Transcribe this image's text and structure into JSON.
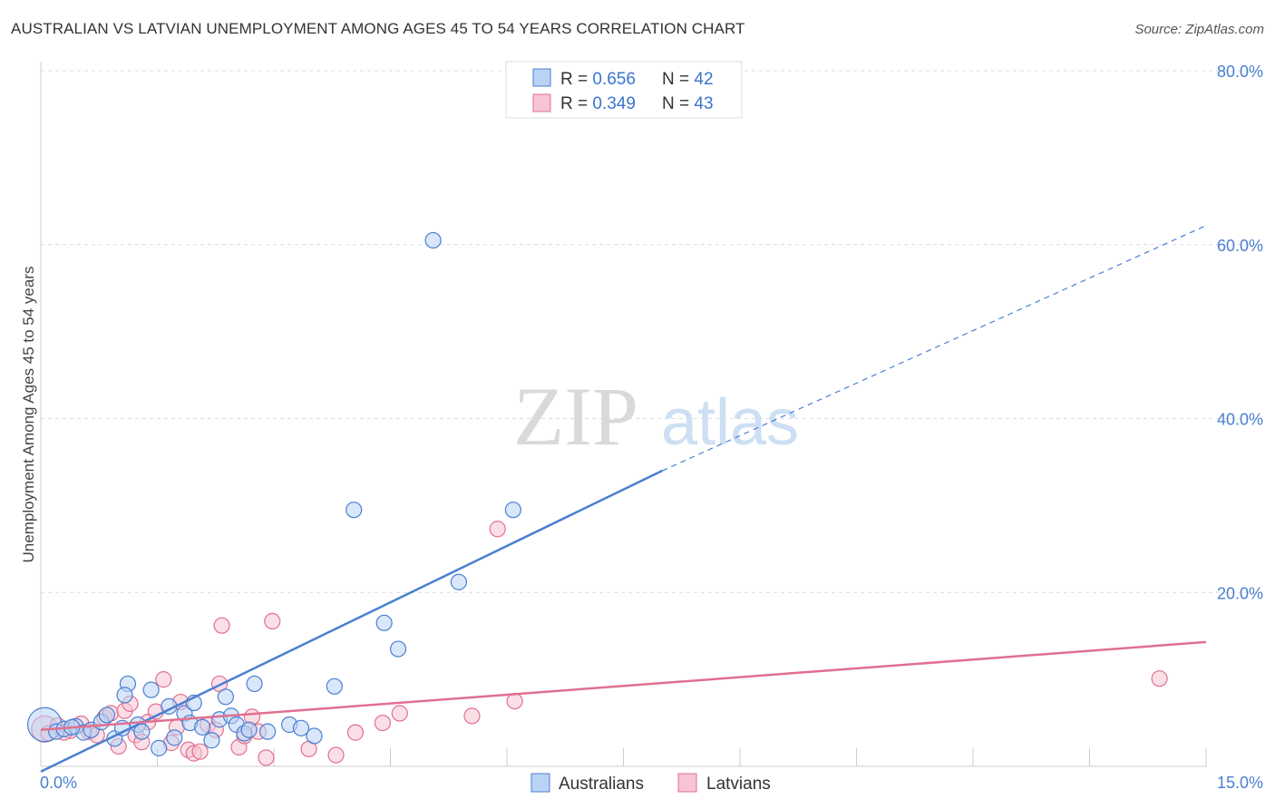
{
  "title": "AUSTRALIAN VS LATVIAN UNEMPLOYMENT AMONG AGES 45 TO 54 YEARS CORRELATION CHART",
  "source": "Source: ZipAtlas.com",
  "watermark": {
    "zip": "ZIP",
    "atlas": "atlas"
  },
  "legend": {
    "rows": [
      {
        "r_label": "R = ",
        "r_value": "0.656",
        "n_label": "N = ",
        "n_value": "42"
      },
      {
        "r_label": "R = ",
        "r_value": "0.349",
        "n_label": "N = ",
        "n_value": "43"
      }
    ]
  },
  "chart_data": {
    "type": "scatter",
    "title": "AUSTRALIAN VS LATVIAN UNEMPLOYMENT AMONG AGES 45 TO 54 YEARS CORRELATION CHART",
    "xlabel": "",
    "ylabel": "Unemployment Among Ages 45 to 54 years",
    "xlim": [
      0,
      15
    ],
    "ylim": [
      0,
      80
    ],
    "x_tick_labels": [
      "0.0%",
      "15.0%"
    ],
    "y_ticks": [
      20,
      40,
      60,
      80
    ],
    "y_tick_labels": [
      "20.0%",
      "40.0%",
      "60.0%",
      "80.0%"
    ],
    "grid": true,
    "colors": {
      "australians": "#4a7fd0",
      "latvians": "#e0708f",
      "australians_fill": "#b9d3f5",
      "latvians_fill": "#f7c4d3"
    },
    "series": [
      {
        "name": "Australians",
        "r": 0.656,
        "n": 42,
        "trend": {
          "x0": 0,
          "y0": -0.6,
          "x1": 8.0,
          "y1": 34.0,
          "dash_to_x": 15.0,
          "dash_to_y": 62.2
        },
        "points": [
          [
            0.05,
            4.8,
            2.2
          ],
          [
            0.2,
            4.0,
            1
          ],
          [
            0.3,
            4.3,
            1
          ],
          [
            0.45,
            4.6,
            1
          ],
          [
            0.55,
            3.9,
            1
          ],
          [
            0.65,
            4.2,
            1
          ],
          [
            0.78,
            5.1,
            1
          ],
          [
            0.85,
            5.9,
            1
          ],
          [
            0.95,
            3.2,
            1
          ],
          [
            1.05,
            4.4,
            1
          ],
          [
            1.12,
            9.5,
            1
          ],
          [
            1.08,
            8.2,
            1
          ],
          [
            1.25,
            4.8,
            1
          ],
          [
            1.42,
            8.8,
            1
          ],
          [
            1.52,
            2.1,
            1
          ],
          [
            1.65,
            6.9,
            1
          ],
          [
            1.72,
            3.3,
            1
          ],
          [
            1.85,
            6.1,
            1
          ],
          [
            1.92,
            5.0,
            1
          ],
          [
            1.97,
            7.3,
            1
          ],
          [
            2.08,
            4.5,
            1
          ],
          [
            2.2,
            3.0,
            1
          ],
          [
            2.3,
            5.4,
            1
          ],
          [
            2.38,
            8.0,
            1
          ],
          [
            2.45,
            5.8,
            1
          ],
          [
            2.52,
            4.8,
            1
          ],
          [
            2.62,
            3.8,
            1
          ],
          [
            2.75,
            9.5,
            1
          ],
          [
            2.92,
            4.0,
            1
          ],
          [
            3.2,
            4.8,
            1
          ],
          [
            3.35,
            4.4,
            1
          ],
          [
            3.52,
            3.5,
            1
          ],
          [
            3.78,
            9.2,
            1
          ],
          [
            4.03,
            29.5,
            1
          ],
          [
            4.42,
            16.5,
            1
          ],
          [
            4.6,
            13.5,
            1
          ],
          [
            5.05,
            60.5,
            1
          ],
          [
            5.38,
            21.2,
            1
          ],
          [
            6.08,
            29.5,
            1
          ],
          [
            2.68,
            4.2,
            1
          ],
          [
            0.4,
            4.5,
            1
          ],
          [
            1.3,
            4.0,
            1
          ]
        ]
      },
      {
        "name": "Latvians",
        "r": 0.349,
        "n": 43,
        "trend": {
          "x0": 0,
          "y0": 4.2,
          "x1": 15.0,
          "y1": 14.3
        },
        "points": [
          [
            0.05,
            4.3,
            1.7
          ],
          [
            0.22,
            4.7,
            1
          ],
          [
            0.38,
            4.1,
            1
          ],
          [
            0.52,
            4.9,
            1
          ],
          [
            0.62,
            4.0,
            1
          ],
          [
            0.72,
            3.6,
            1
          ],
          [
            0.82,
            5.6,
            1
          ],
          [
            0.9,
            6.1,
            1
          ],
          [
            1.0,
            2.3,
            1
          ],
          [
            1.08,
            6.4,
            1
          ],
          [
            1.15,
            7.2,
            1
          ],
          [
            1.22,
            3.6,
            1
          ],
          [
            1.3,
            2.8,
            1
          ],
          [
            1.38,
            5.1,
            1
          ],
          [
            1.48,
            6.3,
            1
          ],
          [
            1.58,
            10.0,
            1
          ],
          [
            1.68,
            2.7,
            1
          ],
          [
            1.8,
            7.4,
            1
          ],
          [
            1.9,
            1.9,
            1
          ],
          [
            1.97,
            1.5,
            1
          ],
          [
            2.05,
            1.7,
            1
          ],
          [
            2.15,
            4.8,
            1
          ],
          [
            2.25,
            4.2,
            1
          ],
          [
            2.3,
            9.5,
            1
          ],
          [
            2.33,
            16.2,
            1
          ],
          [
            2.55,
            2.2,
            1
          ],
          [
            2.62,
            3.5,
            1
          ],
          [
            2.72,
            5.7,
            1
          ],
          [
            2.9,
            1.0,
            1
          ],
          [
            2.98,
            16.7,
            1
          ],
          [
            3.45,
            2.0,
            1
          ],
          [
            3.8,
            1.3,
            1
          ],
          [
            4.05,
            3.9,
            1
          ],
          [
            4.4,
            5.0,
            1
          ],
          [
            4.62,
            6.1,
            1
          ],
          [
            5.55,
            5.8,
            1
          ],
          [
            5.88,
            27.3,
            1
          ],
          [
            6.1,
            7.5,
            1
          ],
          [
            14.4,
            10.1,
            1
          ],
          [
            0.1,
            3.8,
            1
          ],
          [
            0.3,
            3.9,
            1
          ],
          [
            1.75,
            4.5,
            1
          ],
          [
            2.8,
            4.0,
            1
          ]
        ]
      }
    ]
  }
}
